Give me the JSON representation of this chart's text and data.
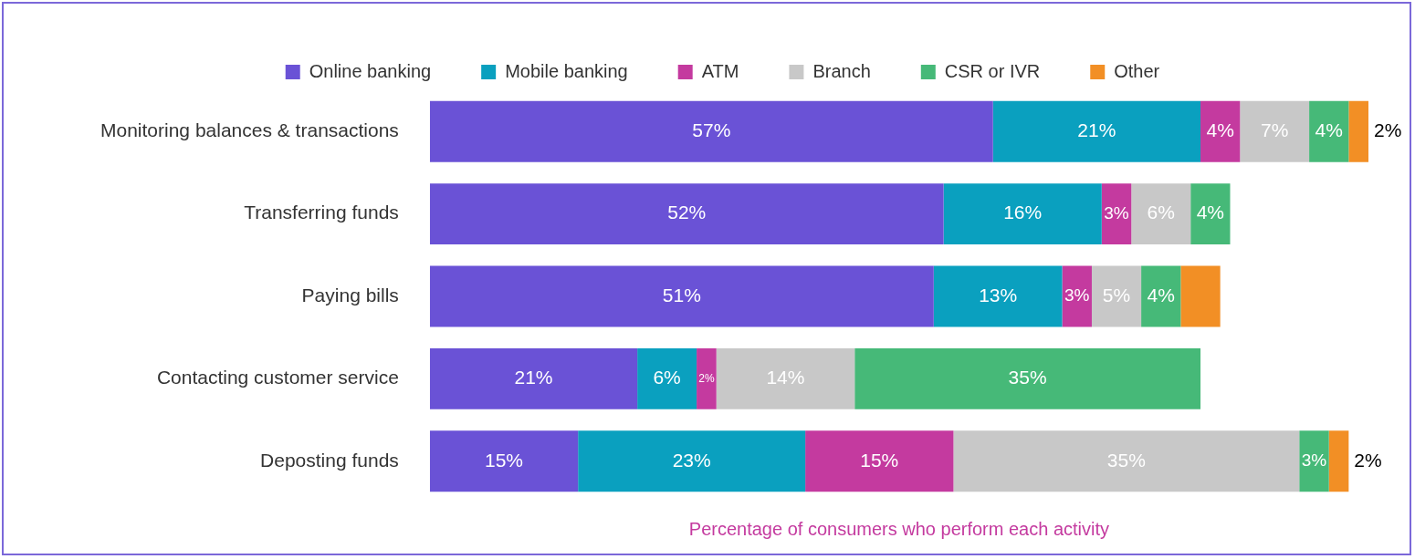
{
  "chart_data": {
    "type": "bar",
    "orientation": "horizontal",
    "stacked": true,
    "xlabel": "Percentage of consumers who perform each activity",
    "categories": [
      "Monitoring balances & transactions",
      "Transferring funds",
      "Paying bills",
      "Contacting customer service",
      "Deposting funds"
    ],
    "series": [
      {
        "name": "Online banking",
        "color": "#6a52d6",
        "values": [
          57,
          52,
          51,
          21,
          15
        ],
        "value_labels": [
          "57%",
          "52%",
          "51%",
          "21%",
          "15%"
        ]
      },
      {
        "name": "Mobile banking",
        "color": "#0aa0bf",
        "values": [
          21,
          16,
          13,
          6,
          23
        ],
        "value_labels": [
          "21%",
          "16%",
          "13%",
          "6%",
          "23%"
        ]
      },
      {
        "name": "ATM",
        "color": "#c43a9f",
        "values": [
          4,
          3,
          3,
          2,
          15
        ],
        "value_labels": [
          "4%",
          "3%",
          "3%",
          "2%",
          "15%"
        ]
      },
      {
        "name": "Branch",
        "color": "#c8c8c8",
        "values": [
          7,
          6,
          5,
          14,
          35
        ],
        "value_labels": [
          "7%",
          "6%",
          "5%",
          "14%",
          "35%"
        ]
      },
      {
        "name": "CSR or IVR",
        "color": "#46b978",
        "values": [
          4,
          4,
          4,
          35,
          3
        ],
        "value_labels": [
          "4%",
          "4%",
          "4%",
          "35%",
          "3%"
        ]
      },
      {
        "name": "Other",
        "color": "#f28f25",
        "values": [
          2,
          null,
          4,
          null,
          2
        ],
        "value_labels": [
          "2%",
          null,
          null,
          null,
          "2%"
        ]
      }
    ],
    "xlim": [
      0,
      95
    ],
    "tick_labels": "y",
    "grid": false,
    "legend": "top"
  }
}
